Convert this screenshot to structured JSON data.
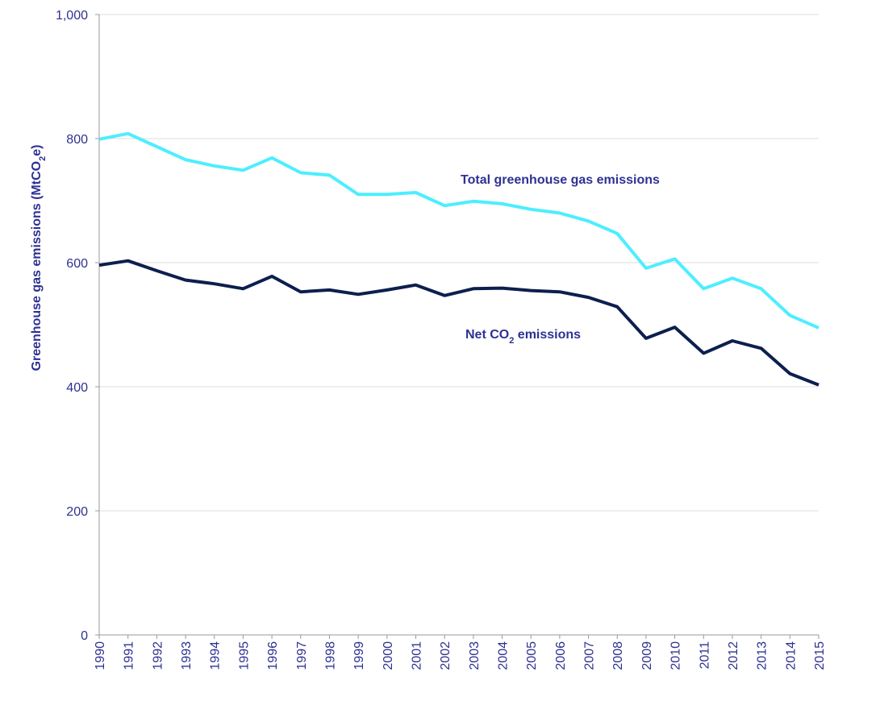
{
  "chart_data": {
    "type": "line",
    "title": "",
    "xlabel": "",
    "ylabel": "Greenhouse gas emissions (MtCO2e)",
    "ylabel_parts": {
      "pre": "Greenhouse gas emissions (MtCO",
      "sub": "2",
      "post": "e)"
    },
    "ylim": [
      0,
      1000
    ],
    "yticks": [
      {
        "value": 0,
        "label": "0"
      },
      {
        "value": 200,
        "label": "200"
      },
      {
        "value": 400,
        "label": "400"
      },
      {
        "value": 600,
        "label": "600"
      },
      {
        "value": 800,
        "label": "800"
      },
      {
        "value": 1000,
        "label": "1,000"
      }
    ],
    "grid": true,
    "legend": "none",
    "x": [
      "1990",
      "1991",
      "1992",
      "1993",
      "1994",
      "1995",
      "1996",
      "1997",
      "1998",
      "1999",
      "2000",
      "2001",
      "2002",
      "2003",
      "2004",
      "2005",
      "2006",
      "2007",
      "2008",
      "2009",
      "2010",
      "2011",
      "2012",
      "2013",
      "2014",
      "2015"
    ],
    "series": [
      {
        "name": "Total greenhouse gas emissions",
        "color": "#4deeff",
        "values": [
          799,
          808,
          787,
          766,
          756,
          749,
          769,
          745,
          741,
          710,
          710,
          713,
          692,
          699,
          695,
          686,
          680,
          667,
          647,
          591,
          606,
          558,
          575,
          558,
          515,
          495
        ]
      },
      {
        "name": "Net CO2 emissions",
        "name_parts": {
          "pre": "Net CO",
          "sub": "2",
          "post": " emissions"
        },
        "color": "#0c1f4e",
        "values": [
          596,
          603,
          587,
          572,
          566,
          558,
          578,
          553,
          556,
          549,
          556,
          564,
          547,
          558,
          559,
          555,
          553,
          544,
          529,
          478,
          496,
          454,
          474,
          462,
          421,
          403
        ]
      }
    ]
  }
}
